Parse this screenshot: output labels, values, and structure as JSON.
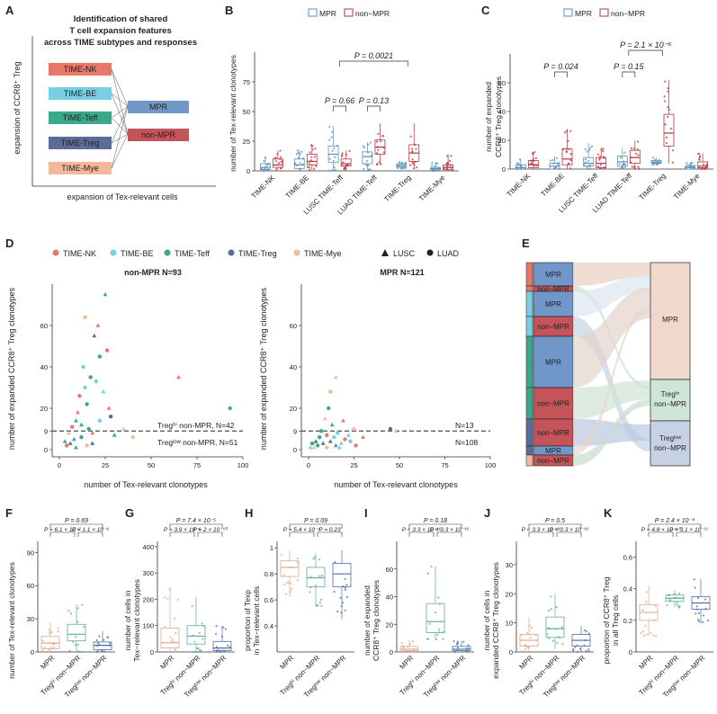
{
  "panelA": {
    "letter": "A",
    "title_lines": [
      "Identification of shared",
      "T cell expansion features",
      "across TIME subtypes and responses"
    ],
    "ylabel": "expansion of CCR8⁺ Treg",
    "xlabel": "expansion of Tex-relevant cells",
    "subtypes": [
      {
        "name": "TIME-NK",
        "color": "#e8776a"
      },
      {
        "name": "TIME-BE",
        "color": "#76cfe3"
      },
      {
        "name": "TIME-Teff",
        "color": "#3aa88c"
      },
      {
        "name": "TIME-Treg",
        "color": "#5b6c98"
      },
      {
        "name": "TIME-Mye",
        "color": "#f5b89a"
      }
    ],
    "responses": [
      {
        "name": "MPR",
        "color": "#7196c8"
      },
      {
        "name": "non-MPR",
        "color": "#c4535a"
      }
    ]
  },
  "panelB": {
    "letter": "B",
    "ylabel": "number of Tex-relevant clonotypes",
    "legend": [
      "MPR",
      "non−MPR"
    ],
    "pvalues": [
      "P = 0.66",
      "P = 0.13",
      "P = 0.0021"
    ]
  },
  "panelC": {
    "letter": "C",
    "ylabel_lines": [
      "number of expanded",
      "CCR8⁺ Treg clonotypes"
    ],
    "legend": [
      "MPR",
      "non−MPR"
    ],
    "pvalues": [
      "P = 0.024",
      "P = 0.15",
      "P = 2.1 × 10⁻⁶"
    ]
  },
  "panelD": {
    "letter": "D",
    "legend": [
      "TIME-NK",
      "TIME-BE",
      "TIME-Teff",
      "TIME-Treg",
      "TIME-Mye",
      "LUSC",
      "LUAD"
    ],
    "left_title": "non-MPR N=93",
    "right_title": "MPR N=121",
    "xlabel": "number of Tex-relevant clonotypes",
    "ylabel": "number of expanded CCR8⁺ Treg clonotypes",
    "left_hi": "Tregʰⁱ non-MPR, N=42",
    "left_lo": "Tregˡᵒʷ non-MPR, N=51",
    "right_hi": "N=13",
    "right_lo": "N=108"
  },
  "panelE": {
    "letter": "E",
    "left_labels": [
      "MPR",
      "non−MPR",
      "MPR",
      "non−MPR",
      "MPR",
      "non−MPR",
      "non−MPR",
      "MPR",
      "non−MPR"
    ],
    "right_labels": [
      "MPR",
      "Tregʰⁱ non−MPR",
      "Tregˡᵒʷ non−MPR"
    ]
  },
  "lowerPanels": [
    {
      "letter": "F",
      "ylabel_lines": [
        "number of Tex-relevant clonotypes"
      ],
      "ptop": "P = 0.69",
      "pl": "P = 6.1 × 10⁻⁷",
      "pr": "P = 1.1 × 10⁻⁶",
      "cats": [
        "MPR",
        "Tregʰⁱ non−MPR",
        "Tregˡᵒʷ non−MPR"
      ]
    },
    {
      "letter": "G",
      "ylabel_lines": [
        "number of cells in",
        "Tex−relevant clonotypes"
      ],
      "ptop": "P = 7.4 × 10⁻⁵",
      "pl": "P = 3.9 × 10⁻⁶",
      "pr": "P = 2 × 10⁻¹⁰",
      "cats": [
        "MPR",
        "Tregʰⁱ non−MPR",
        "Tregˡᵒʷ non−MPR"
      ]
    },
    {
      "letter": "H",
      "ylabel_lines": [
        "proportion of Texp",
        "in Tex−relevant cells"
      ],
      "ptop": "P = 0.09",
      "pl": "P = 5.4 × 10⁻⁴",
      "pr": "P = 0.23",
      "cats": [
        "MPR",
        "Tregʰⁱ non−MPR",
        "Tregˡᵒʷ non−MPR"
      ]
    },
    {
      "letter": "I",
      "ylabel_lines": [
        "number of expanded",
        "CCR8⁺ Treg clonotypes"
      ],
      "ptop": "P = 0.18",
      "pl": "P < 3.3 × 10⁻¹⁶",
      "pr": "P < 3.3 × 10⁻¹⁶",
      "cats": [
        "MPR",
        "Tregʰⁱ non−MPR",
        "Tregˡᵒʷ non−MPR"
      ]
    },
    {
      "letter": "J",
      "ylabel_lines": [
        "number of cells in",
        "expanded CCR8⁺ Treg clonotypes"
      ],
      "ptop": "P = 0.5",
      "pl": "P < 3.3 × 10⁻¹⁶",
      "pr": "P < 3.3 × 10⁻¹⁶",
      "cats": [
        "MPR",
        "Tregʰⁱ non−MPR",
        "Tregˡᵒʷ non−MPR"
      ]
    },
    {
      "letter": "K",
      "ylabel_lines": [
        "proportion of CCR8⁺ Treg",
        "in all Treg cells"
      ],
      "ptop": "P = 2.4 × 10⁻⁴",
      "pl": "P = 4.8 × 10⁻¹⁰",
      "pr": "P = 3.1 × 10⁻¹¹",
      "cats": [
        "MPR",
        "Tregʰⁱ non−MPR",
        "Tregˡᵒʷ non−MPR"
      ]
    }
  ],
  "colors": {
    "mpr": "#5a8fb8",
    "nonmpr": "#b8323d",
    "hi": "#5fae92",
    "lo": "#4e6fa8",
    "mprF": "#e0a888"
  },
  "chart_data": [
    {
      "panel": "B",
      "type": "box",
      "categories": [
        "TIME-NK",
        "TIME-BE",
        "LUSC TIME-Teff",
        "LUAD TIME-Teff",
        "TIME-Treg",
        "TIME-Mye"
      ],
      "series": [
        {
          "name": "MPR",
          "median": [
            3,
            5,
            14,
            12,
            4,
            2
          ],
          "q1": [
            1,
            2,
            7,
            6,
            3,
            1
          ],
          "q3": [
            6,
            10,
            21,
            16,
            6,
            3
          ],
          "lo": [
            0,
            0,
            0,
            1,
            2,
            0
          ],
          "hi": [
            12,
            18,
            38,
            24,
            8,
            7
          ]
        },
        {
          "name": "non−MPR",
          "median": [
            5,
            8,
            6,
            20,
            15,
            3
          ],
          "q1": [
            3,
            5,
            4,
            14,
            8,
            1
          ],
          "q3": [
            10,
            14,
            10,
            26,
            22,
            5
          ],
          "lo": [
            1,
            1,
            1,
            5,
            2,
            0
          ],
          "hi": [
            17,
            22,
            17,
            40,
            40,
            14
          ]
        }
      ],
      "ylim": [
        0,
        100
      ],
      "yticks": [
        0,
        25,
        50,
        75
      ]
    },
    {
      "panel": "C",
      "type": "box",
      "categories": [
        "TIME-NK",
        "TIME-BE",
        "LUSC TIME-Teff",
        "LUAD TIME-Teff",
        "TIME-Treg",
        "TIME-Mye"
      ],
      "series": [
        {
          "name": "MPR",
          "median": [
            1,
            2,
            4,
            5,
            5,
            1
          ],
          "q1": [
            0,
            0,
            2,
            2,
            4,
            0
          ],
          "q3": [
            3,
            4,
            8,
            9,
            6,
            2
          ],
          "lo": [
            0,
            0,
            0,
            0,
            3,
            0
          ],
          "hi": [
            7,
            9,
            18,
            15,
            8,
            5
          ]
        },
        {
          "name": "non−MPR",
          "median": [
            3,
            7,
            4,
            8,
            25,
            2
          ],
          "q1": [
            1,
            3,
            1,
            4,
            16,
            1
          ],
          "q3": [
            6,
            14,
            8,
            13,
            38,
            5
          ],
          "lo": [
            0,
            0,
            0,
            0,
            4,
            0
          ],
          "hi": [
            12,
            28,
            15,
            20,
            62,
            11
          ]
        }
      ],
      "ylim": [
        0,
        80
      ],
      "yticks": [
        0,
        20,
        40,
        60
      ]
    },
    {
      "panel": "D-left",
      "type": "scatter",
      "title": "non-MPR N=93",
      "xlim": [
        0,
        100
      ],
      "ylim": [
        0,
        80
      ],
      "xticks": [
        0,
        25,
        50,
        75,
        100
      ],
      "yticks": [
        0,
        9,
        20,
        40,
        60
      ],
      "threshold": 9,
      "points": [
        [
          12,
          12
        ],
        [
          15,
          22
        ],
        [
          18,
          8
        ],
        [
          20,
          33
        ],
        [
          25,
          75
        ],
        [
          22,
          45
        ],
        [
          10,
          18
        ],
        [
          14,
          64
        ],
        [
          8,
          5
        ],
        [
          16,
          10
        ],
        [
          24,
          28
        ],
        [
          28,
          16
        ],
        [
          6,
          3
        ],
        [
          4,
          2
        ],
        [
          30,
          7
        ],
        [
          13,
          40
        ],
        [
          19,
          55
        ],
        [
          11,
          26
        ],
        [
          9,
          14
        ],
        [
          17,
          35
        ],
        [
          21,
          60
        ],
        [
          26,
          48
        ],
        [
          35,
          10
        ],
        [
          40,
          6
        ],
        [
          65,
          35
        ],
        [
          93,
          20
        ],
        [
          5,
          8
        ],
        [
          7,
          11
        ],
        [
          3,
          4
        ],
        [
          12,
          6
        ],
        [
          18,
          3
        ],
        [
          22,
          14
        ],
        [
          27,
          20
        ],
        [
          15,
          2
        ],
        [
          9,
          1
        ],
        [
          14,
          30
        ]
      ]
    },
    {
      "panel": "D-right",
      "type": "scatter",
      "title": "MPR N=121",
      "xlim": [
        0,
        100
      ],
      "ylim": [
        0,
        80
      ],
      "xticks": [
        0,
        25,
        50,
        75,
        100
      ],
      "yticks": [
        0,
        9,
        20,
        40,
        60
      ],
      "threshold": 9,
      "points": [
        [
          3,
          1
        ],
        [
          5,
          2
        ],
        [
          8,
          3
        ],
        [
          10,
          1
        ],
        [
          12,
          4
        ],
        [
          14,
          6
        ],
        [
          15,
          2
        ],
        [
          16,
          8
        ],
        [
          18,
          3
        ],
        [
          20,
          5
        ],
        [
          22,
          7
        ],
        [
          25,
          10
        ],
        [
          13,
          12
        ],
        [
          11,
          20
        ],
        [
          15,
          35
        ],
        [
          12,
          28
        ],
        [
          9,
          15
        ],
        [
          6,
          6
        ],
        [
          4,
          4
        ],
        [
          7,
          9
        ],
        [
          19,
          14
        ],
        [
          23,
          4
        ],
        [
          17,
          1
        ],
        [
          26,
          2
        ],
        [
          30,
          6
        ],
        [
          45,
          10
        ],
        [
          48,
          9
        ],
        [
          2,
          3
        ],
        [
          1,
          1
        ],
        [
          10,
          7
        ]
      ]
    },
    {
      "panel": "F",
      "type": "box",
      "categories": [
        "MPR",
        "Treg-hi non−MPR",
        "Treg-low non−MPR"
      ],
      "median": [
        8,
        16,
        6
      ],
      "q1": [
        3,
        10,
        2
      ],
      "q3": [
        14,
        25,
        9
      ],
      "lo": [
        0,
        0,
        0
      ],
      "hi": [
        27,
        43,
        19
      ],
      "ylim": [
        0,
        100
      ],
      "yticks": [
        0,
        30,
        60,
        90
      ]
    },
    {
      "panel": "G",
      "type": "box",
      "categories": [
        "MPR",
        "Treg-hi non−MPR",
        "Treg-low non−MPR"
      ],
      "median": [
        35,
        60,
        15
      ],
      "q1": [
        15,
        30,
        5
      ],
      "q3": [
        90,
        100,
        40
      ],
      "lo": [
        0,
        0,
        0
      ],
      "hi": [
        250,
        210,
        100
      ],
      "ylim": [
        0,
        420
      ],
      "yticks": [
        0,
        100,
        200,
        300,
        400
      ]
    },
    {
      "panel": "H",
      "type": "box",
      "categories": [
        "MPR",
        "Treg-hi non−MPR",
        "Treg-low non−MPR"
      ],
      "median": [
        0.85,
        0.77,
        0.8
      ],
      "q1": [
        0.78,
        0.7,
        0.7
      ],
      "q3": [
        0.9,
        0.85,
        0.88
      ],
      "lo": [
        0.62,
        0.55,
        0.45
      ],
      "hi": [
        0.98,
        0.96,
        0.98
      ],
      "ylim": [
        0.2,
        1.05
      ],
      "yticks": [
        0.4,
        0.6,
        0.8,
        1.0
      ]
    },
    {
      "panel": "I",
      "type": "box",
      "categories": [
        "MPR",
        "Treg-hi non−MPR",
        "Treg-low non−MPR"
      ],
      "median": [
        2,
        22,
        2
      ],
      "q1": [
        1,
        14,
        1
      ],
      "q3": [
        4,
        35,
        4
      ],
      "lo": [
        0,
        9,
        0
      ],
      "hi": [
        9,
        62,
        8
      ],
      "ylim": [
        0,
        80
      ],
      "yticks": [
        0,
        20,
        40,
        60
      ]
    },
    {
      "panel": "J",
      "type": "box",
      "categories": [
        "MPR",
        "Treg-hi non−MPR",
        "Treg-low non−MPR"
      ],
      "median": [
        4,
        8,
        4
      ],
      "q1": [
        2,
        5,
        2
      ],
      "q3": [
        6,
        12,
        6
      ],
      "lo": [
        0,
        1,
        0
      ],
      "hi": [
        12,
        20,
        9
      ],
      "ylim": [
        0,
        38
      ],
      "yticks": [
        0,
        10,
        20,
        30
      ]
    },
    {
      "panel": "K",
      "type": "box",
      "categories": [
        "MPR",
        "Treg-hi non−MPR",
        "Treg-low non−MPR"
      ],
      "median": [
        0.25,
        0.34,
        0.31
      ],
      "q1": [
        0.2,
        0.32,
        0.27
      ],
      "q3": [
        0.3,
        0.36,
        0.35
      ],
      "lo": [
        0.1,
        0.28,
        0.18
      ],
      "hi": [
        0.42,
        0.39,
        0.46
      ],
      "ylim": [
        0,
        0.7
      ],
      "yticks": [
        0,
        0.2,
        0.4,
        0.6
      ]
    }
  ]
}
